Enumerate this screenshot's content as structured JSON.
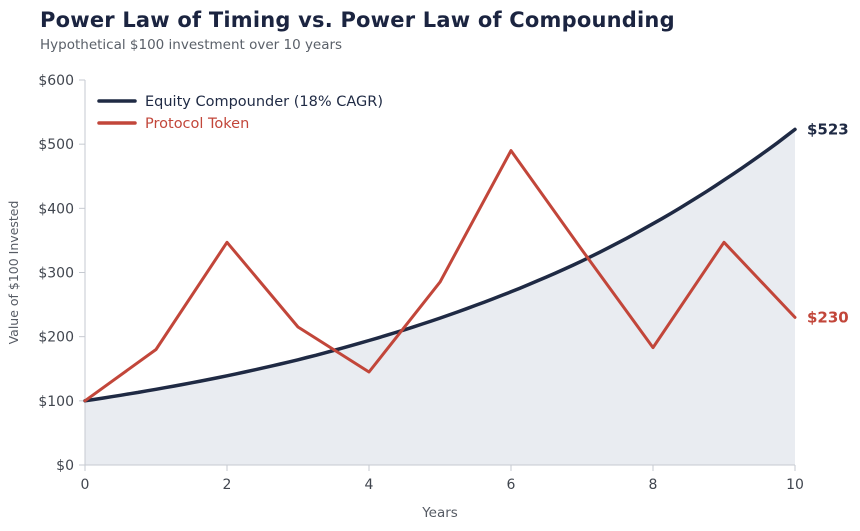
{
  "header": {
    "title": "Power Law of Timing vs. Power Law of Compounding",
    "subtitle": "Hypothetical $100 investment over 10 years"
  },
  "chart_data": {
    "type": "line",
    "title": "Power Law of Timing vs. Power Law of Compounding",
    "subtitle": "Hypothetical $100 investment over 10 years",
    "xlabel": "Years",
    "ylabel": "Value of $100 Invested",
    "xlim": [
      0,
      10
    ],
    "ylim": [
      0,
      600
    ],
    "x": [
      0,
      1,
      2,
      3,
      4,
      5,
      6,
      7,
      8,
      9,
      10
    ],
    "xticks": [
      0,
      2,
      4,
      6,
      8,
      10
    ],
    "xtick_labels": [
      "0",
      "2",
      "4",
      "6",
      "8",
      "10"
    ],
    "yticks": [
      0,
      100,
      200,
      300,
      400,
      500,
      600
    ],
    "ytick_labels": [
      "$0",
      "$100",
      "$200",
      "$300",
      "$400",
      "$500",
      "$600"
    ],
    "grid": false,
    "legend_position": "top-left",
    "series": [
      {
        "name": "Equity Compounder (18% CAGR)",
        "color": "#1f2a44",
        "smooth": true,
        "area": true,
        "area_color": "#e9ecf1",
        "values": [
          100,
          118,
          139,
          164,
          194,
          229,
          270,
          318,
          376,
          444,
          523
        ],
        "end_label": "$523"
      },
      {
        "name": "Protocol Token",
        "color": "#c2463a",
        "smooth": false,
        "area": false,
        "values": [
          100,
          180,
          347,
          215,
          145,
          285,
          490,
          335,
          183,
          347,
          230
        ],
        "end_label": "$230"
      }
    ],
    "axis_color": "#c6cad1",
    "tick_text_color": "#41464f",
    "axis_title_color": "#565b64"
  }
}
